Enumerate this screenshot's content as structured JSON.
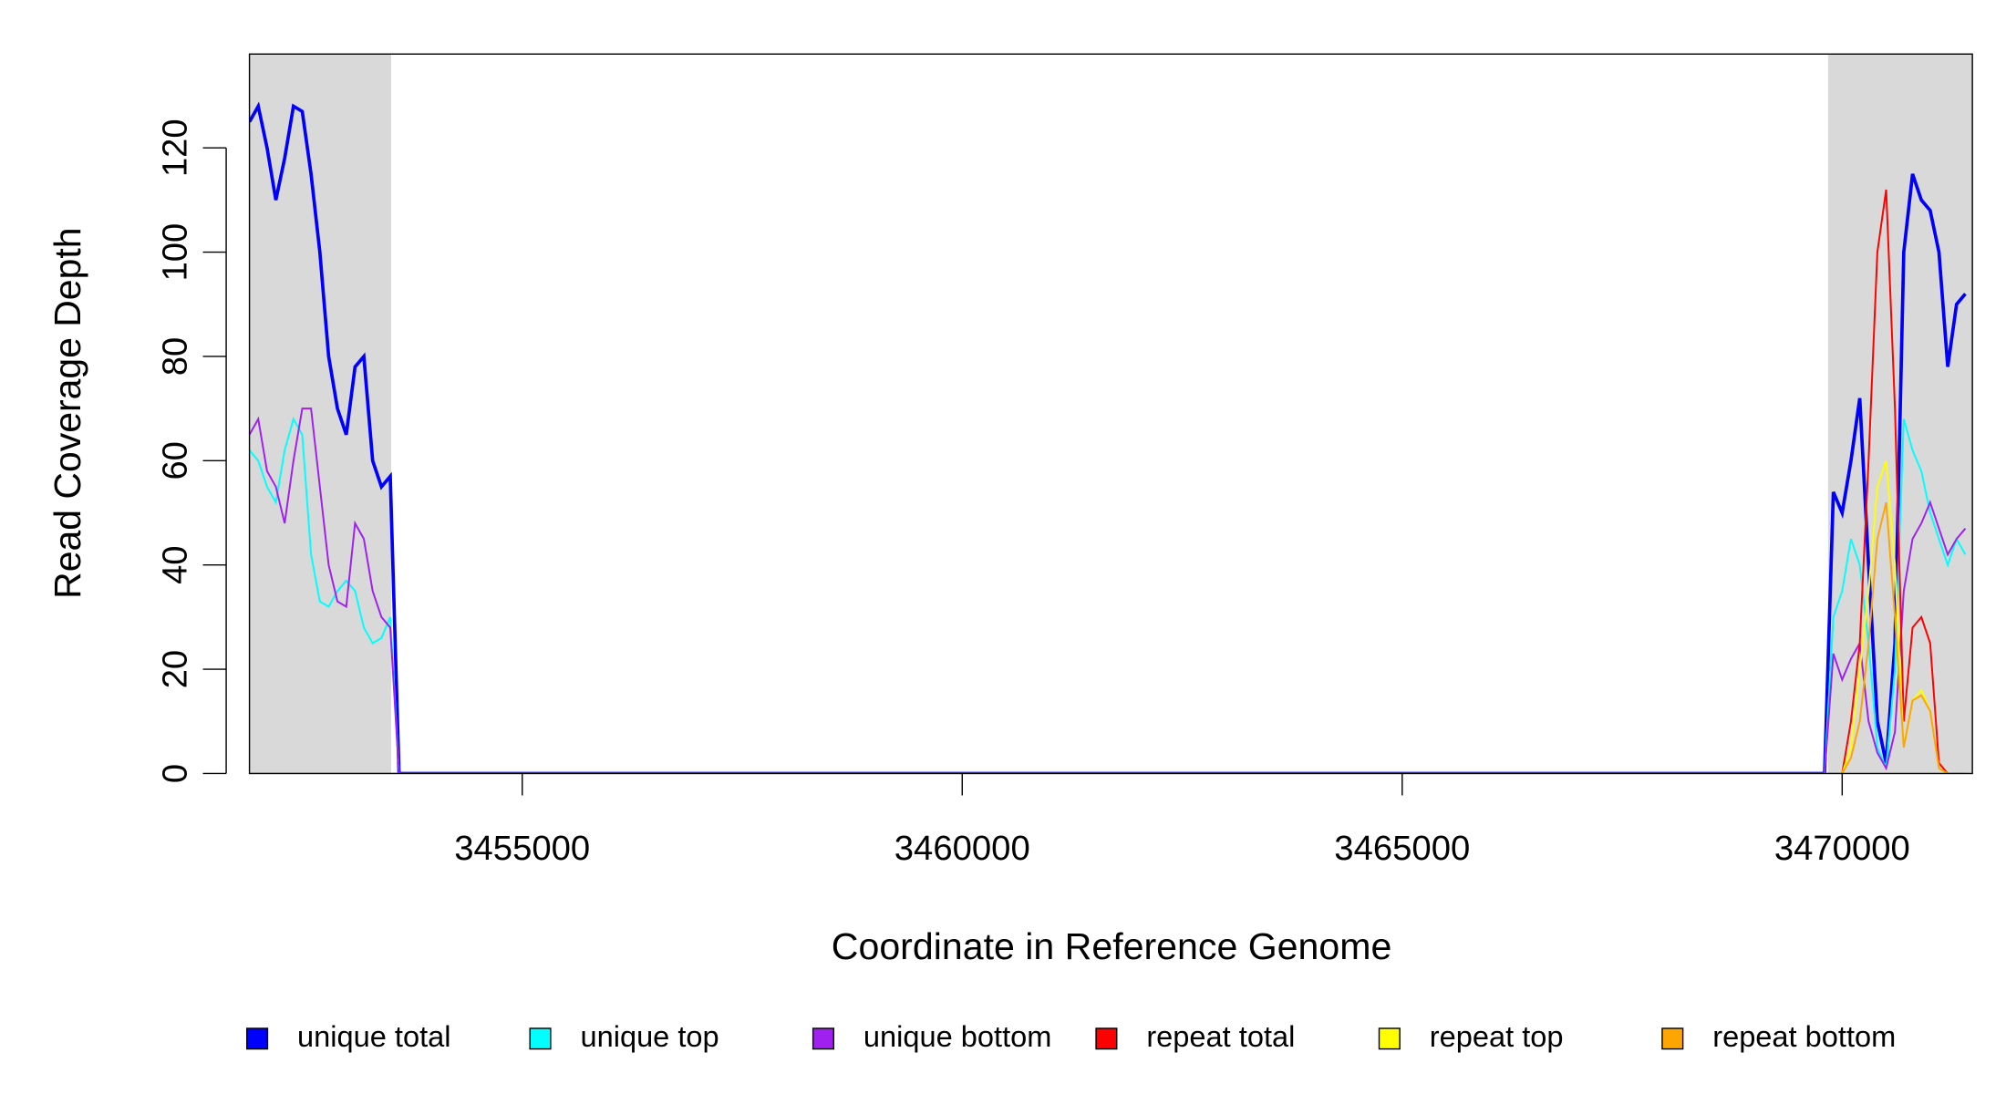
{
  "chart_data": {
    "type": "line",
    "x_label": "Coordinate in Reference Genome",
    "y_label": "Read Coverage Depth",
    "x": [
      3451900,
      3452000,
      3452100,
      3452200,
      3452300,
      3452400,
      3452500,
      3452600,
      3452700,
      3452800,
      3452900,
      3453000,
      3453100,
      3453200,
      3453300,
      3453400,
      3453500,
      3453600,
      3469800,
      3469900,
      3470000,
      3470100,
      3470200,
      3470300,
      3470400,
      3470500,
      3470600,
      3470700,
      3470800,
      3470900,
      3471000,
      3471100,
      3471200,
      3471300,
      3471400
    ],
    "series": [
      {
        "name": "unique total",
        "color": "#0000ff",
        "values": [
          125,
          128,
          120,
          110,
          118,
          128,
          127,
          115,
          100,
          80,
          70,
          65,
          78,
          80,
          60,
          55,
          57,
          0,
          0,
          54,
          50,
          60,
          72,
          40,
          10,
          2,
          25,
          100,
          115,
          110,
          108,
          100,
          78,
          90,
          92
        ]
      },
      {
        "name": "unique top",
        "color": "#00ffff",
        "values": [
          62,
          60,
          55,
          52,
          62,
          68,
          65,
          42,
          33,
          32,
          35,
          37,
          35,
          28,
          25,
          26,
          30,
          0,
          0,
          30,
          35,
          45,
          40,
          25,
          5,
          1,
          20,
          68,
          62,
          58,
          50,
          45,
          40,
          45,
          42
        ]
      },
      {
        "name": "unique bottom",
        "color": "#a020f0",
        "values": [
          65,
          68,
          58,
          55,
          48,
          60,
          70,
          70,
          55,
          40,
          33,
          32,
          48,
          45,
          35,
          30,
          28,
          0,
          0,
          23,
          18,
          22,
          25,
          10,
          4,
          1,
          8,
          35,
          45,
          48,
          52,
          47,
          42,
          45,
          47
        ]
      },
      {
        "name": "repeat total",
        "color": "#ff0000",
        "values": [
          0,
          0,
          0,
          0,
          0,
          0,
          0,
          0,
          0,
          0,
          0,
          0,
          0,
          0,
          0,
          0,
          0,
          0,
          0,
          0,
          0,
          10,
          25,
          60,
          100,
          112,
          70,
          10,
          28,
          30,
          25,
          2,
          0,
          0,
          0
        ]
      },
      {
        "name": "repeat top",
        "color": "#ffff00",
        "values": [
          0,
          0,
          0,
          0,
          0,
          0,
          0,
          0,
          0,
          0,
          0,
          0,
          0,
          0,
          0,
          0,
          0,
          0,
          0,
          0,
          0,
          5,
          20,
          35,
          55,
          60,
          40,
          5,
          14,
          16,
          12,
          1,
          0,
          0,
          0
        ]
      },
      {
        "name": "repeat bottom",
        "color": "#ffa500",
        "values": [
          0,
          0,
          0,
          0,
          0,
          0,
          0,
          0,
          0,
          0,
          0,
          0,
          0,
          0,
          0,
          0,
          0,
          0,
          0,
          0,
          0,
          3,
          10,
          25,
          45,
          52,
          30,
          5,
          14,
          15,
          12,
          1,
          0,
          0,
          0
        ]
      }
    ],
    "highlight_regions": [
      [
        3451900,
        3453510
      ],
      [
        3469840,
        3471480
      ]
    ],
    "highlight_color": "#d9d9d9",
    "xlim": [
      3451900,
      3471480
    ],
    "ylim": [
      0,
      138
    ],
    "xticks": [
      3455000,
      3460000,
      3465000,
      3470000
    ],
    "yticks": [
      0,
      20,
      40,
      60,
      80,
      100,
      120
    ],
    "legend": "bottom"
  }
}
